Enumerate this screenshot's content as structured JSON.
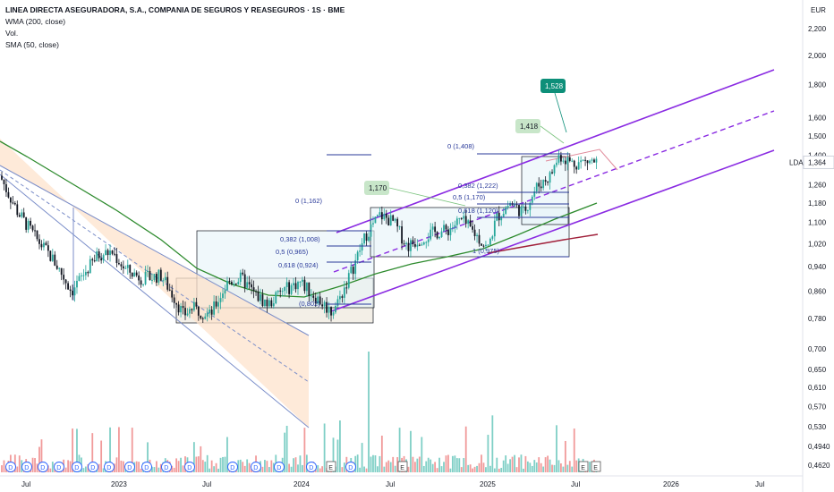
{
  "legend": {
    "title": "LINEA DIRECTA ASEGURADORA, S.A., COMPANIA DE SEGUROS Y REASEGUROS · 1S · BME",
    "indicators": [
      "WMA (200, close)",
      "Vol.",
      "SMA (50, close)"
    ]
  },
  "currency": "EUR",
  "ticker": "LDA",
  "colors": {
    "up": "#26a69a",
    "down": "#131722",
    "sma": "#2e8b2e",
    "wma": "#a0203a",
    "channel": "#8a2be2",
    "fib": "#2a3a9a",
    "vol_up": "#7fcfc6",
    "vol_down": "#f19a9a"
  },
  "chart_data": {
    "type": "candlestick",
    "x_ticks": [
      "Jul",
      "2023",
      "Jul",
      "2024",
      "Jul",
      "2025",
      "Jul",
      "2026",
      "Jul"
    ],
    "y_ticks": [
      "2,200",
      "2,000",
      "1,800",
      "1,600",
      "1,500",
      "1,400",
      "1,364",
      "1,260",
      "1,180",
      "1,100",
      "1,020",
      "0,940",
      "0,860",
      "0,780",
      "0,700",
      "0,650",
      "0,610",
      "0,570",
      "0,530",
      "0,4940",
      "0,4620"
    ],
    "y_scale": "log",
    "ylim": [
      0.455,
      2.3
    ],
    "last_price": "1,364",
    "callouts": [
      "1,528",
      "1,418",
      "1,170"
    ],
    "fib_labels": [
      "0 (1,408)",
      "0,382 (1,222)",
      "0,5 (1,170)",
      "0,618 (1,120)",
      "1 (0,975)",
      "0 (1,162)",
      "0,382 (1,008)",
      "0,5 (0,965)",
      "0,618 (0,924)",
      "(0,802)"
    ],
    "event_markers": [
      "D",
      "D",
      "D",
      "D",
      "D",
      "D",
      "D",
      "D",
      "D",
      "D",
      "E",
      "D",
      "E",
      "D",
      "D",
      "D",
      "D",
      "D",
      "E",
      "E"
    ]
  }
}
